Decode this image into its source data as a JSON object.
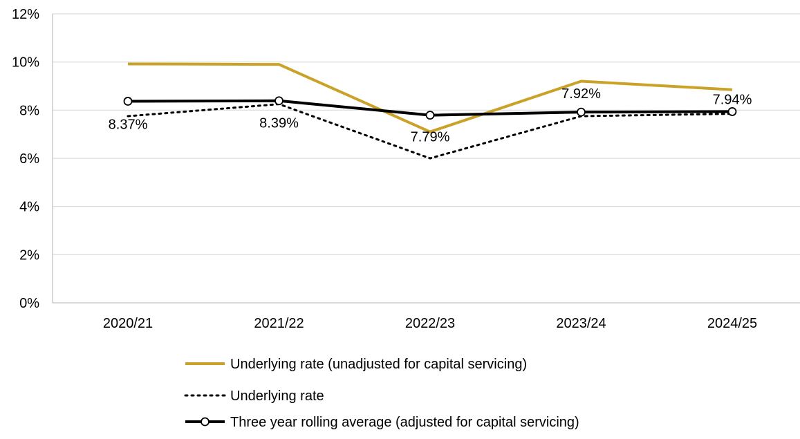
{
  "chart_data": {
    "type": "line",
    "categories": [
      "2020/21",
      "2021/22",
      "2022/23",
      "2023/24",
      "2024/25"
    ],
    "ylim": [
      0,
      12
    ],
    "yticks": [
      0,
      2,
      4,
      6,
      8,
      10,
      12
    ],
    "ytick_labels": [
      "0%",
      "2%",
      "4%",
      "6%",
      "8%",
      "10%",
      "12%"
    ],
    "grid": "horizontal",
    "legend_position": "bottom",
    "series": [
      {
        "name": "Underlying rate (unadjusted for capital servicing)",
        "values": [
          9.92,
          9.9,
          7.1,
          9.2,
          8.85
        ],
        "color": "#C9A227",
        "style": "solid",
        "marker": "none"
      },
      {
        "name": "Underlying rate",
        "values": [
          7.75,
          8.25,
          6.0,
          7.75,
          7.85
        ],
        "color": "#000000",
        "style": "dotted",
        "marker": "none"
      },
      {
        "name": "Three year rolling average (adjusted for capital servicing)",
        "values": [
          8.37,
          8.39,
          7.79,
          7.92,
          7.94
        ],
        "color": "#000000",
        "style": "solid",
        "marker": "circle",
        "data_labels": [
          "8.37%",
          "8.39%",
          "7.79%",
          "7.92%",
          "7.94%"
        ]
      }
    ]
  }
}
